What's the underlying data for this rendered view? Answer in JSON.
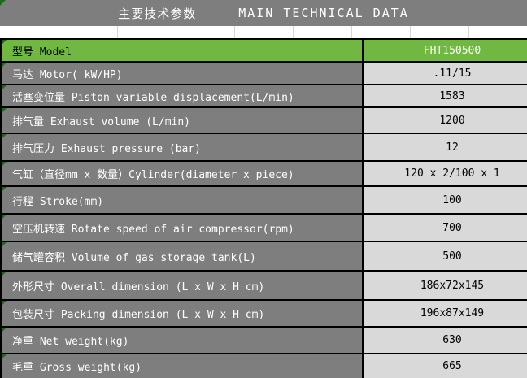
{
  "header": {
    "title_zh": "主要技术参数",
    "title_en": "MAIN TECHNICAL DATA"
  },
  "table": {
    "rows": [
      {
        "label": "型号 Model",
        "value": "FHT150500"
      },
      {
        "label": "马达 Motor( kW/HP)",
        "value": ".11/15"
      },
      {
        "label": "活塞变位量 Piston variable displacement(L/min)",
        "value": "1583"
      },
      {
        "label": "排气量 Exhaust volume (L/min)",
        "value": "1200"
      },
      {
        "label": "排气压力 Exhaust pressure (bar)",
        "value": "12"
      },
      {
        "label": "气缸（直径mm x 数量）Cylinder(diameter x piece)",
        "value": "120 x 2/100 x 1"
      },
      {
        "label": "行程 Stroke(mm)",
        "value": "100"
      },
      {
        "label": "空压机转速 Rotate speed of air compressor(rpm)",
        "value": "700"
      },
      {
        "label": "储气罐容积 Volume of gas storage tank(L)",
        "value": "500"
      },
      {
        "label": "外形尺寸 Overall dimension (L x W x H cm)",
        "value": "186x72x145"
      },
      {
        "label": "包装尺寸 Packing dimension (L x W x H cm)",
        "value": "196x87x149"
      },
      {
        "label": "净重 Net weight(kg)",
        "value": "630"
      },
      {
        "label": "毛重 Gross weight(kg)",
        "value": "665"
      }
    ]
  },
  "colors": {
    "accent_green": "#70b842",
    "label_gray": "#7e7e7e",
    "value_bg": "#d9d9d9",
    "triangle_green": "#1c6b1c",
    "border": "#000000"
  }
}
